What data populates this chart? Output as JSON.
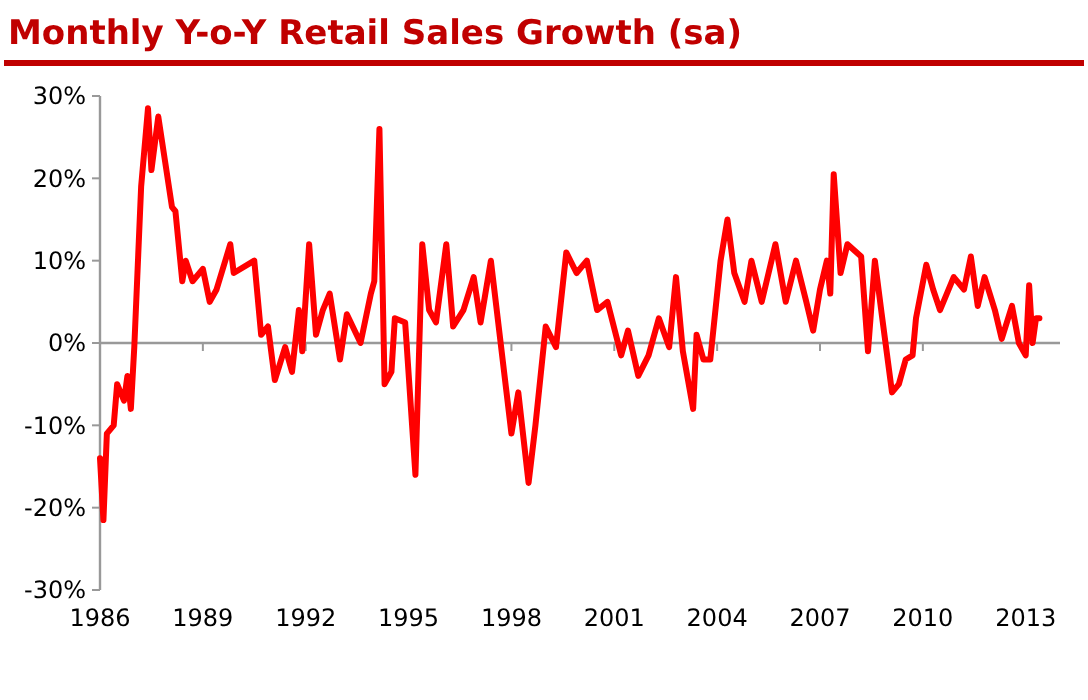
{
  "chart_data": {
    "type": "line",
    "title": "Monthly Y-o-Y Retail Sales Growth (sa)",
    "xlim": [
      1986,
      2014
    ],
    "xticks": [
      1986,
      1989,
      1992,
      1995,
      1998,
      2001,
      2004,
      2007,
      2010,
      2013
    ],
    "ylim": [
      -30,
      30
    ],
    "yticks": [
      {
        "value": -30,
        "label": "-30%"
      },
      {
        "value": -20,
        "label": "-20%"
      },
      {
        "value": -10,
        "label": "-10%"
      },
      {
        "value": 0,
        "label": "0%"
      },
      {
        "value": 10,
        "label": "10%"
      },
      {
        "value": 20,
        "label": "20%"
      },
      {
        "value": 30,
        "label": "30%"
      }
    ],
    "series": [
      {
        "color": "#ff0000",
        "x": [
          1986.0,
          1986.1,
          1986.2,
          1986.4,
          1986.5,
          1986.7,
          1986.8,
          1986.9,
          1987.0,
          1987.2,
          1987.4,
          1987.5,
          1987.7,
          1987.9,
          1988.1,
          1988.2,
          1988.4,
          1988.5,
          1988.7,
          1989.0,
          1989.2,
          1989.4,
          1989.8,
          1989.9,
          1990.5,
          1990.7,
          1990.9,
          1991.1,
          1991.4,
          1991.6,
          1991.8,
          1991.9,
          1992.1,
          1992.3,
          1992.5,
          1992.7,
          1993.0,
          1993.2,
          1993.6,
          1993.9,
          1994.0,
          1994.15,
          1994.3,
          1994.5,
          1994.6,
          1994.9,
          1995.2,
          1995.4,
          1995.6,
          1995.8,
          1996.1,
          1996.3,
          1996.6,
          1996.9,
          1997.1,
          1997.4,
          1997.7,
          1998.0,
          1998.2,
          1998.5,
          1998.7,
          1999.0,
          1999.3,
          1999.6,
          1999.9,
          2000.2,
          2000.5,
          2000.8,
          2001.2,
          2001.4,
          2001.7,
          2002.0,
          2002.3,
          2002.6,
          2002.8,
          2003.0,
          2003.3,
          2003.4,
          2003.6,
          2003.8,
          2004.1,
          2004.3,
          2004.5,
          2004.8,
          2005.0,
          2005.3,
          2005.7,
          2006.0,
          2006.3,
          2006.6,
          2006.8,
          2007.0,
          2007.2,
          2007.3,
          2007.4,
          2007.6,
          2007.8,
          2008.2,
          2008.4,
          2008.6,
          2008.8,
          2009.1,
          2009.3,
          2009.5,
          2009.7,
          2009.8,
          2010.1,
          2010.3,
          2010.5,
          2010.7,
          2010.9,
          2011.2,
          2011.4,
          2011.6,
          2011.8,
          2012.1,
          2012.3,
          2012.6,
          2012.8,
          2013.0,
          2013.1,
          2013.2,
          2013.3,
          2013.4
        ],
        "values": [
          -14,
          -21.5,
          -11,
          -10,
          -5,
          -7,
          -4,
          -8,
          -0.5,
          19,
          28.5,
          21,
          27.5,
          22,
          16.5,
          16,
          7.5,
          10,
          7.5,
          9,
          5,
          6.5,
          12,
          8.5,
          10,
          1,
          2,
          -4.5,
          -0.5,
          -3.5,
          4,
          -1,
          12,
          1,
          4,
          6,
          -2,
          3.5,
          0,
          6,
          7.5,
          26,
          -5,
          -3.5,
          3,
          2.5,
          -16,
          12,
          4,
          2.5,
          12,
          2,
          4,
          8,
          2.5,
          10,
          -0.5,
          -11,
          -6,
          -17,
          -10,
          2,
          -0.5,
          11,
          8.5,
          10,
          4,
          5,
          -1.5,
          1.5,
          -4,
          -1.5,
          3,
          -0.5,
          8,
          -1,
          -8,
          1,
          -2,
          -2,
          10,
          15,
          8.5,
          5,
          10,
          5,
          12,
          5,
          10,
          5,
          1.5,
          6.5,
          10,
          6,
          20.5,
          8.5,
          12,
          10.5,
          -1,
          10,
          3.5,
          -6,
          -5,
          -2,
          -1.5,
          3,
          9.5,
          6.5,
          4,
          6,
          8,
          6.5,
          10.5,
          4.5,
          8,
          4,
          0.5,
          4.5,
          0,
          -1.5,
          7,
          0,
          3,
          3
        ]
      }
    ]
  }
}
